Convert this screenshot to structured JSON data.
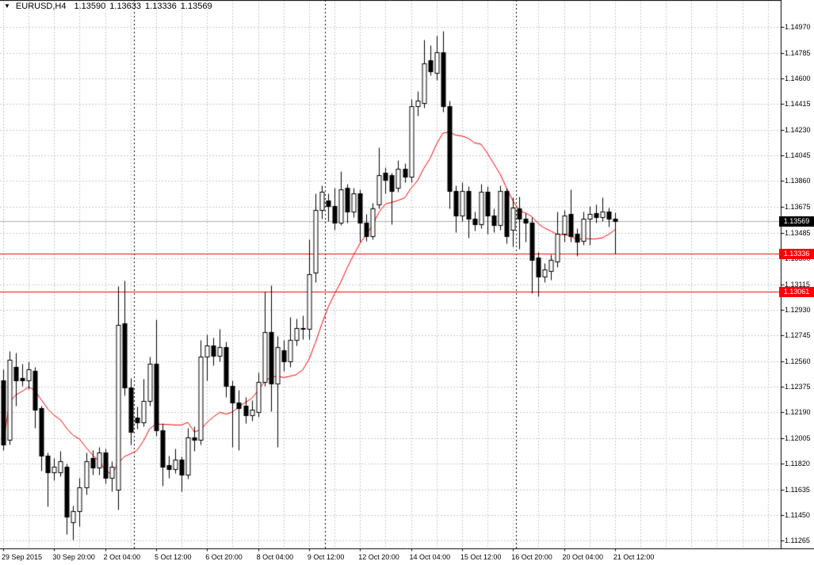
{
  "quote": {
    "marker_icon": "▼",
    "symbol_period": "EURUSD,H4",
    "open": "1.13590",
    "high": "1.13633",
    "low": "1.13336",
    "close": "1.13569"
  },
  "colors": {
    "background": "#ffffff",
    "grid": "#c9c9c9",
    "separator": "#000000",
    "bull_body": "#ffffff",
    "bear_body": "#000000",
    "outline": "#000000",
    "ma_line": "#ff0000",
    "hline": "#ff0000",
    "current_price_line": "#b0b0b0",
    "axis_text": "#000000"
  },
  "chart_data": {
    "type": "candlestick",
    "symbol": "EURUSD",
    "timeframe": "H4",
    "title": "EURUSD,H4 1.13590 1.13633 1.13336 1.13569",
    "ylim": [
      1.11265,
      1.1497
    ],
    "grid": "dashed",
    "y_ticks": [
      "1.14970",
      "1.14785",
      "1.14600",
      "1.14415",
      "1.14230",
      "1.14045",
      "1.13860",
      "1.13675",
      "1.13485",
      "1.13300",
      "1.13115",
      "1.12930",
      "1.12745",
      "1.12560",
      "1.12375",
      "1.12190",
      "1.12005",
      "1.11820",
      "1.11635",
      "1.11450",
      "1.11265"
    ],
    "x_ticks": [
      {
        "label": "29 Sep 2015",
        "index": 0
      },
      {
        "label": "30 Sep 20:00",
        "index": 8
      },
      {
        "label": "2 Oct 04:00",
        "index": 16
      },
      {
        "label": "5 Oct 12:00",
        "index": 24
      },
      {
        "label": "6 Oct 20:00",
        "index": 32
      },
      {
        "label": "8 Oct 04:00",
        "index": 40
      },
      {
        "label": "9 Oct 12:00",
        "index": 48
      },
      {
        "label": "12 Oct 20:00",
        "index": 56
      },
      {
        "label": "14 Oct 04:00",
        "index": 64
      },
      {
        "label": "15 Oct 12:00",
        "index": 72
      },
      {
        "label": "16 Oct 20:00",
        "index": 80
      },
      {
        "label": "20 Oct 04:00",
        "index": 88
      },
      {
        "label": "21 Oct 12:00",
        "index": 96
      }
    ],
    "week_separator_indices": [
      20.5,
      50.5,
      80.5
    ],
    "horizontal_lines": [
      {
        "value": 1.13336,
        "label": "1.13336",
        "color": "#ff0000"
      },
      {
        "value": 1.13061,
        "label": "1.13061",
        "color": "#ff0000"
      }
    ],
    "current_price": {
      "value": 1.13569,
      "label": "1.13569"
    },
    "moving_average": {
      "period": 12,
      "color": "#ff0000"
    },
    "candles": [
      {
        "t": "29 Sep 12:00",
        "o": 1.1242,
        "h": 1.125,
        "l": 1.1192,
        "c": 1.1196
      },
      {
        "t": "29 Sep 16:00",
        "o": 1.1199,
        "h": 1.1263,
        "l": 1.1196,
        "c": 1.1257
      },
      {
        "t": "29 Sep 20:00",
        "o": 1.1252,
        "h": 1.1262,
        "l": 1.1224,
        "c": 1.1242
      },
      {
        "t": "30 Sep 00:00",
        "o": 1.1244,
        "h": 1.1254,
        "l": 1.1238,
        "c": 1.1242
      },
      {
        "t": "30 Sep 04:00",
        "o": 1.1242,
        "h": 1.1256,
        "l": 1.1236,
        "c": 1.125
      },
      {
        "t": "30 Sep 08:00",
        "o": 1.1249,
        "h": 1.1252,
        "l": 1.1208,
        "c": 1.1221
      },
      {
        "t": "30 Sep 12:00",
        "o": 1.1222,
        "h": 1.1224,
        "l": 1.1177,
        "c": 1.1188
      },
      {
        "t": "30 Sep 16:00",
        "o": 1.1188,
        "h": 1.119,
        "l": 1.1151,
        "c": 1.1176
      },
      {
        "t": "30 Sep 20:00",
        "o": 1.1176,
        "h": 1.1186,
        "l": 1.117,
        "c": 1.118
      },
      {
        "t": "1 Oct 00:00",
        "o": 1.1176,
        "h": 1.1191,
        "l": 1.1173,
        "c": 1.1184
      },
      {
        "t": "1 Oct 04:00",
        "o": 1.118,
        "h": 1.1182,
        "l": 1.1131,
        "c": 1.1144
      },
      {
        "t": "1 Oct 08:00",
        "o": 1.114,
        "h": 1.1152,
        "l": 1.1127,
        "c": 1.1148
      },
      {
        "t": "1 Oct 12:00",
        "o": 1.1148,
        "h": 1.1172,
        "l": 1.1137,
        "c": 1.1165
      },
      {
        "t": "1 Oct 16:00",
        "o": 1.1165,
        "h": 1.119,
        "l": 1.116,
        "c": 1.1184
      },
      {
        "t": "1 Oct 20:00",
        "o": 1.1186,
        "h": 1.1192,
        "l": 1.1174,
        "c": 1.1179
      },
      {
        "t": "2 Oct 00:00",
        "o": 1.1179,
        "h": 1.1194,
        "l": 1.1174,
        "c": 1.119
      },
      {
        "t": "2 Oct 04:00",
        "o": 1.119,
        "h": 1.1193,
        "l": 1.1168,
        "c": 1.1172
      },
      {
        "t": "2 Oct 08:00",
        "o": 1.1172,
        "h": 1.1184,
        "l": 1.1162,
        "c": 1.118
      },
      {
        "t": "2 Oct 12:00",
        "o": 1.1163,
        "h": 1.131,
        "l": 1.1149,
        "c": 1.1282
      },
      {
        "t": "2 Oct 16:00",
        "o": 1.1283,
        "h": 1.1314,
        "l": 1.1231,
        "c": 1.1237
      },
      {
        "t": "2 Oct 20:00",
        "o": 1.1237,
        "h": 1.1244,
        "l": 1.1196,
        "c": 1.1205
      },
      {
        "t": "5 Oct 00:00",
        "o": 1.1215,
        "h": 1.1223,
        "l": 1.1207,
        "c": 1.1212
      },
      {
        "t": "5 Oct 04:00",
        "o": 1.1212,
        "h": 1.1243,
        "l": 1.1209,
        "c": 1.1227
      },
      {
        "t": "5 Oct 08:00",
        "o": 1.1227,
        "h": 1.1259,
        "l": 1.1224,
        "c": 1.1254
      },
      {
        "t": "5 Oct 12:00",
        "o": 1.1254,
        "h": 1.1286,
        "l": 1.1202,
        "c": 1.1206
      },
      {
        "t": "5 Oct 16:00",
        "o": 1.1206,
        "h": 1.1211,
        "l": 1.1166,
        "c": 1.118
      },
      {
        "t": "5 Oct 20:00",
        "o": 1.1181,
        "h": 1.1188,
        "l": 1.1172,
        "c": 1.1178
      },
      {
        "t": "6 Oct 00:00",
        "o": 1.1178,
        "h": 1.1193,
        "l": 1.1175,
        "c": 1.1185
      },
      {
        "t": "6 Oct 04:00",
        "o": 1.1185,
        "h": 1.1187,
        "l": 1.1162,
        "c": 1.1174
      },
      {
        "t": "6 Oct 08:00",
        "o": 1.1174,
        "h": 1.1208,
        "l": 1.1171,
        "c": 1.1201
      },
      {
        "t": "6 Oct 12:00",
        "o": 1.1201,
        "h": 1.1209,
        "l": 1.1191,
        "c": 1.1199
      },
      {
        "t": "6 Oct 16:00",
        "o": 1.1199,
        "h": 1.1271,
        "l": 1.1196,
        "c": 1.1259
      },
      {
        "t": "6 Oct 20:00",
        "o": 1.1259,
        "h": 1.1275,
        "l": 1.1242,
        "c": 1.1267
      },
      {
        "t": "7 Oct 00:00",
        "o": 1.1267,
        "h": 1.1273,
        "l": 1.1253,
        "c": 1.126
      },
      {
        "t": "7 Oct 04:00",
        "o": 1.126,
        "h": 1.1279,
        "l": 1.1256,
        "c": 1.1266
      },
      {
        "t": "7 Oct 08:00",
        "o": 1.1266,
        "h": 1.127,
        "l": 1.123,
        "c": 1.1238
      },
      {
        "t": "7 Oct 12:00",
        "o": 1.1238,
        "h": 1.1242,
        "l": 1.1194,
        "c": 1.1226
      },
      {
        "t": "7 Oct 16:00",
        "o": 1.1226,
        "h": 1.1235,
        "l": 1.1192,
        "c": 1.1222
      },
      {
        "t": "7 Oct 20:00",
        "o": 1.1224,
        "h": 1.123,
        "l": 1.1211,
        "c": 1.1217
      },
      {
        "t": "8 Oct 00:00",
        "o": 1.1217,
        "h": 1.1228,
        "l": 1.1213,
        "c": 1.1221
      },
      {
        "t": "8 Oct 04:00",
        "o": 1.1219,
        "h": 1.1248,
        "l": 1.1216,
        "c": 1.1241
      },
      {
        "t": "8 Oct 08:00",
        "o": 1.1241,
        "h": 1.1306,
        "l": 1.1238,
        "c": 1.1277
      },
      {
        "t": "8 Oct 12:00",
        "o": 1.1277,
        "h": 1.1311,
        "l": 1.122,
        "c": 1.124
      },
      {
        "t": "8 Oct 16:00",
        "o": 1.124,
        "h": 1.1274,
        "l": 1.1194,
        "c": 1.1266
      },
      {
        "t": "8 Oct 20:00",
        "o": 1.1264,
        "h": 1.1271,
        "l": 1.1249,
        "c": 1.1256
      },
      {
        "t": "9 Oct 00:00",
        "o": 1.1256,
        "h": 1.1288,
        "l": 1.1252,
        "c": 1.1271
      },
      {
        "t": "9 Oct 04:00",
        "o": 1.1271,
        "h": 1.1287,
        "l": 1.1267,
        "c": 1.128
      },
      {
        "t": "9 Oct 08:00",
        "o": 1.128,
        "h": 1.1289,
        "l": 1.1272,
        "c": 1.1279
      },
      {
        "t": "9 Oct 12:00",
        "o": 1.1279,
        "h": 1.1344,
        "l": 1.1272,
        "c": 1.1319
      },
      {
        "t": "9 Oct 16:00",
        "o": 1.132,
        "h": 1.1377,
        "l": 1.1313,
        "c": 1.1365
      },
      {
        "t": "9 Oct 20:00",
        "o": 1.1365,
        "h": 1.1383,
        "l": 1.1359,
        "c": 1.1378
      },
      {
        "t": "12 Oct 00:00",
        "o": 1.1372,
        "h": 1.1377,
        "l": 1.1357,
        "c": 1.1368
      },
      {
        "t": "12 Oct 04:00",
        "o": 1.1368,
        "h": 1.1381,
        "l": 1.1351,
        "c": 1.1356
      },
      {
        "t": "12 Oct 08:00",
        "o": 1.1356,
        "h": 1.1393,
        "l": 1.1354,
        "c": 1.138
      },
      {
        "t": "12 Oct 12:00",
        "o": 1.1381,
        "h": 1.1384,
        "l": 1.1356,
        "c": 1.1364
      },
      {
        "t": "12 Oct 16:00",
        "o": 1.1364,
        "h": 1.1381,
        "l": 1.136,
        "c": 1.1377
      },
      {
        "t": "12 Oct 20:00",
        "o": 1.1377,
        "h": 1.138,
        "l": 1.1342,
        "c": 1.1356
      },
      {
        "t": "13 Oct 00:00",
        "o": 1.1356,
        "h": 1.1362,
        "l": 1.1343,
        "c": 1.1346
      },
      {
        "t": "13 Oct 04:00",
        "o": 1.1346,
        "h": 1.137,
        "l": 1.1344,
        "c": 1.1366
      },
      {
        "t": "13 Oct 08:00",
        "o": 1.1369,
        "h": 1.141,
        "l": 1.1366,
        "c": 1.139
      },
      {
        "t": "13 Oct 12:00",
        "o": 1.1392,
        "h": 1.1396,
        "l": 1.1377,
        "c": 1.1387
      },
      {
        "t": "13 Oct 16:00",
        "o": 1.139,
        "h": 1.1392,
        "l": 1.1355,
        "c": 1.1379
      },
      {
        "t": "13 Oct 20:00",
        "o": 1.1381,
        "h": 1.1401,
        "l": 1.1378,
        "c": 1.1395
      },
      {
        "t": "14 Oct 00:00",
        "o": 1.1395,
        "h": 1.1399,
        "l": 1.1385,
        "c": 1.1389
      },
      {
        "t": "14 Oct 04:00",
        "o": 1.1389,
        "h": 1.1445,
        "l": 1.1385,
        "c": 1.144
      },
      {
        "t": "14 Oct 08:00",
        "o": 1.144,
        "h": 1.1451,
        "l": 1.1433,
        "c": 1.1444
      },
      {
        "t": "14 Oct 12:00",
        "o": 1.1442,
        "h": 1.1488,
        "l": 1.1439,
        "c": 1.1471
      },
      {
        "t": "14 Oct 16:00",
        "o": 1.1473,
        "h": 1.1484,
        "l": 1.1462,
        "c": 1.1465
      },
      {
        "t": "14 Oct 20:00",
        "o": 1.1464,
        "h": 1.1491,
        "l": 1.1459,
        "c": 1.1479
      },
      {
        "t": "15 Oct 00:00",
        "o": 1.1479,
        "h": 1.1494,
        "l": 1.1436,
        "c": 1.144
      },
      {
        "t": "15 Oct 04:00",
        "o": 1.144,
        "h": 1.1444,
        "l": 1.1366,
        "c": 1.1379
      },
      {
        "t": "15 Oct 08:00",
        "o": 1.1379,
        "h": 1.1383,
        "l": 1.1349,
        "c": 1.1361
      },
      {
        "t": "15 Oct 12:00",
        "o": 1.1361,
        "h": 1.1385,
        "l": 1.1357,
        "c": 1.1379
      },
      {
        "t": "15 Oct 16:00",
        "o": 1.1379,
        "h": 1.1382,
        "l": 1.1345,
        "c": 1.1359
      },
      {
        "t": "15 Oct 20:00",
        "o": 1.1359,
        "h": 1.1364,
        "l": 1.135,
        "c": 1.1355
      },
      {
        "t": "16 Oct 00:00",
        "o": 1.1355,
        "h": 1.1384,
        "l": 1.1352,
        "c": 1.1378
      },
      {
        "t": "16 Oct 04:00",
        "o": 1.1378,
        "h": 1.1382,
        "l": 1.1348,
        "c": 1.1361
      },
      {
        "t": "16 Oct 08:00",
        "o": 1.1361,
        "h": 1.1366,
        "l": 1.1349,
        "c": 1.1354
      },
      {
        "t": "16 Oct 12:00",
        "o": 1.1354,
        "h": 1.1383,
        "l": 1.1351,
        "c": 1.1379
      },
      {
        "t": "16 Oct 16:00",
        "o": 1.1379,
        "h": 1.1381,
        "l": 1.1341,
        "c": 1.1346
      },
      {
        "t": "16 Oct 20:00",
        "o": 1.1351,
        "h": 1.1374,
        "l": 1.1339,
        "c": 1.1367
      },
      {
        "t": "19 Oct 00:00",
        "o": 1.1366,
        "h": 1.1375,
        "l": 1.1337,
        "c": 1.1359
      },
      {
        "t": "19 Oct 04:00",
        "o": 1.1359,
        "h": 1.1363,
        "l": 1.1342,
        "c": 1.1356
      },
      {
        "t": "19 Oct 08:00",
        "o": 1.1356,
        "h": 1.136,
        "l": 1.1305,
        "c": 1.1329
      },
      {
        "t": "19 Oct 12:00",
        "o": 1.1331,
        "h": 1.1335,
        "l": 1.1303,
        "c": 1.1317
      },
      {
        "t": "19 Oct 16:00",
        "o": 1.1317,
        "h": 1.1327,
        "l": 1.1313,
        "c": 1.1322
      },
      {
        "t": "19 Oct 20:00",
        "o": 1.1321,
        "h": 1.1333,
        "l": 1.1315,
        "c": 1.1329
      },
      {
        "t": "20 Oct 00:00",
        "o": 1.1328,
        "h": 1.1364,
        "l": 1.1324,
        "c": 1.1348
      },
      {
        "t": "20 Oct 04:00",
        "o": 1.1348,
        "h": 1.1365,
        "l": 1.1342,
        "c": 1.1361
      },
      {
        "t": "20 Oct 08:00",
        "o": 1.1362,
        "h": 1.138,
        "l": 1.1342,
        "c": 1.1346
      },
      {
        "t": "20 Oct 12:00",
        "o": 1.1348,
        "h": 1.1352,
        "l": 1.1332,
        "c": 1.1342
      },
      {
        "t": "20 Oct 16:00",
        "o": 1.1343,
        "h": 1.1364,
        "l": 1.134,
        "c": 1.1359
      },
      {
        "t": "20 Oct 20:00",
        "o": 1.1359,
        "h": 1.1368,
        "l": 1.134,
        "c": 1.1362
      },
      {
        "t": "21 Oct 00:00",
        "o": 1.1363,
        "h": 1.1369,
        "l": 1.1356,
        "c": 1.136
      },
      {
        "t": "21 Oct 04:00",
        "o": 1.136,
        "h": 1.1374,
        "l": 1.1357,
        "c": 1.1364
      },
      {
        "t": "21 Oct 08:00",
        "o": 1.1364,
        "h": 1.1367,
        "l": 1.1353,
        "c": 1.1359
      },
      {
        "t": "21 Oct 12:00",
        "o": 1.1359,
        "h": 1.13633,
        "l": 1.13336,
        "c": 1.13569
      }
    ]
  }
}
